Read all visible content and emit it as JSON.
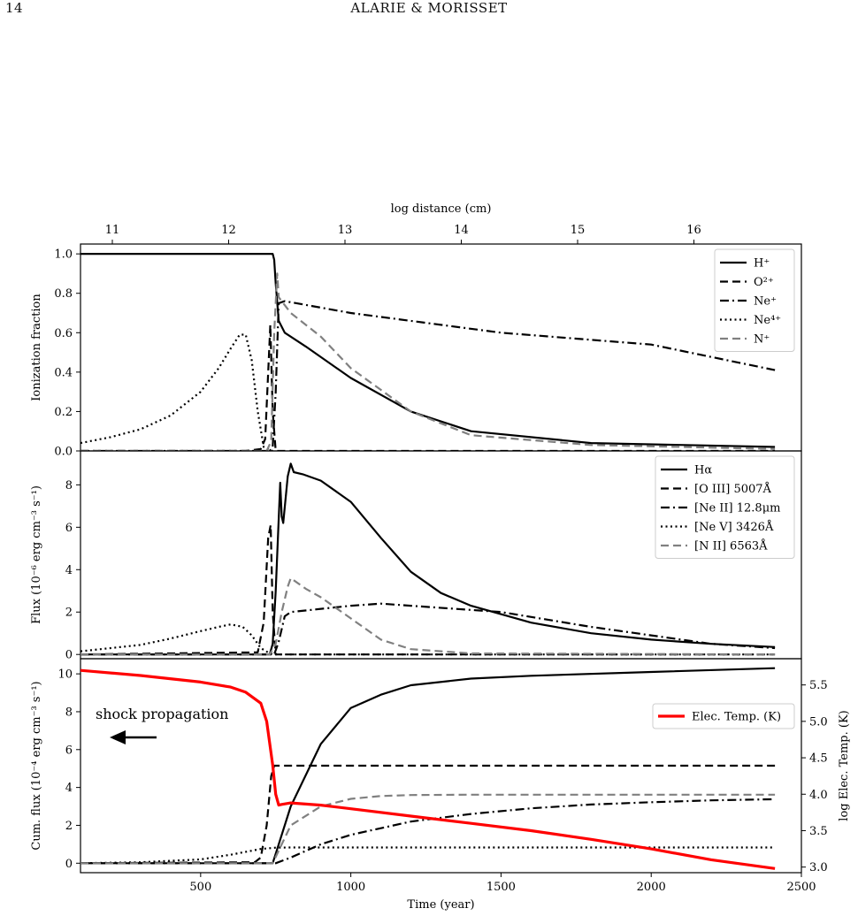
{
  "page": {
    "number": "14",
    "running_head": "ALARIE & MORISSET"
  },
  "chart_data": [
    {
      "type": "line",
      "panel": "top",
      "ylabel": "Ionization fraction",
      "top_xlabel": "log distance (cm)",
      "top_ticks": [
        "11",
        "12",
        "13",
        "14",
        "15",
        "16"
      ],
      "ylim": [
        0,
        1.05
      ],
      "yticks": [
        0.0,
        0.2,
        0.4,
        0.6,
        0.8,
        1.0
      ],
      "xlim": [
        100,
        2500
      ],
      "legend": "top-right",
      "series": [
        {
          "name": "H⁺",
          "style": "solid",
          "color": "#000000",
          "x": [
            100,
            300,
            500,
            700,
            740,
            745,
            750,
            760,
            780,
            850,
            1000,
            1200,
            1400,
            1800,
            2412
          ],
          "y": [
            1.0,
            1.0,
            1.0,
            1.0,
            1.0,
            0.97,
            0.85,
            0.66,
            0.6,
            0.53,
            0.37,
            0.2,
            0.1,
            0.04,
            0.02
          ]
        },
        {
          "name": "O²⁺",
          "style": "dashed",
          "color": "#000000",
          "x": [
            100,
            650,
            700,
            715,
            725,
            732,
            740,
            750,
            800,
            2412
          ],
          "y": [
            0.0,
            0.0,
            0.01,
            0.06,
            0.4,
            0.64,
            0.2,
            0.0,
            0.0,
            0.0
          ]
        },
        {
          "name": "Ne⁺",
          "style": "dashdot",
          "color": "#000000",
          "x": [
            100,
            730,
            740,
            750,
            760,
            780,
            1000,
            1500,
            2000,
            2412
          ],
          "y": [
            0.0,
            0.0,
            0.02,
            0.3,
            0.75,
            0.76,
            0.7,
            0.6,
            0.54,
            0.41
          ]
        },
        {
          "name": "Ne⁴⁺",
          "style": "dotted",
          "color": "#000000",
          "x": [
            100,
            200,
            300,
            400,
            500,
            560,
            600,
            630,
            650,
            670,
            690,
            710,
            740
          ],
          "y": [
            0.04,
            0.07,
            0.11,
            0.18,
            0.3,
            0.42,
            0.52,
            0.59,
            0.59,
            0.46,
            0.2,
            0.02,
            0.0
          ]
        },
        {
          "name": "N⁺",
          "style": "dashed",
          "color": "#808080",
          "x": [
            100,
            720,
            735,
            745,
            755,
            760,
            800,
            900,
            1000,
            1200,
            1400,
            1800,
            2412
          ],
          "y": [
            0.0,
            0.0,
            0.05,
            0.6,
            0.9,
            0.78,
            0.7,
            0.58,
            0.42,
            0.2,
            0.08,
            0.03,
            0.01
          ]
        }
      ]
    },
    {
      "type": "line",
      "panel": "middle",
      "ylabel": "Flux (10⁻⁶ erg cm⁻³ s⁻¹)",
      "ylim": [
        -0.2,
        9.6
      ],
      "yticks": [
        0,
        2,
        4,
        6,
        8
      ],
      "xlim": [
        100,
        2500
      ],
      "legend": "top-right",
      "series": [
        {
          "name": "Hα",
          "style": "solid",
          "color": "#000000",
          "x": [
            100,
            730,
            740,
            750,
            765,
            770,
            775,
            790,
            800,
            810,
            840,
            900,
            1000,
            1100,
            1200,
            1300,
            1400,
            1600,
            1800,
            2000,
            2200,
            2412
          ],
          "y": [
            0.0,
            0.0,
            0.5,
            3.0,
            8.1,
            6.5,
            6.2,
            8.4,
            9.0,
            8.6,
            8.5,
            8.2,
            7.2,
            5.5,
            3.9,
            2.9,
            2.3,
            1.5,
            1.0,
            0.7,
            0.5,
            0.35
          ]
        },
        {
          "name": "[O III] 5007Å",
          "style": "dashed",
          "color": "#000000",
          "x": [
            100,
            690,
            710,
            725,
            733,
            740,
            750,
            2412
          ],
          "y": [
            0.0,
            0.1,
            1.5,
            5.5,
            6.1,
            2.0,
            0.0,
            0.0
          ]
        },
        {
          "name": "[Ne II] 12.8μm",
          "style": "dashdot",
          "color": "#000000",
          "x": [
            100,
            745,
            760,
            780,
            800,
            1000,
            1100,
            1200,
            1500,
            1800,
            2000,
            2200,
            2412
          ],
          "y": [
            0.0,
            0.0,
            0.6,
            1.8,
            2.0,
            2.3,
            2.4,
            2.3,
            2.0,
            1.3,
            0.9,
            0.5,
            0.3
          ]
        },
        {
          "name": "[Ne V] 3426Å",
          "style": "dotted",
          "color": "#000000",
          "x": [
            100,
            200,
            300,
            400,
            500,
            560,
            600,
            640,
            670,
            700,
            730,
            750,
            2412
          ],
          "y": [
            0.15,
            0.3,
            0.45,
            0.75,
            1.1,
            1.3,
            1.42,
            1.3,
            0.9,
            0.3,
            0.05,
            0.0,
            0.0
          ]
        },
        {
          "name": "[N II] 6563Å",
          "style": "dashed",
          "color": "#808080",
          "x": [
            100,
            730,
            750,
            770,
            790,
            800,
            850,
            900,
            1000,
            1100,
            1200,
            1400,
            2412
          ],
          "y": [
            0.0,
            0.0,
            0.5,
            2.0,
            3.2,
            3.6,
            3.1,
            2.7,
            1.7,
            0.7,
            0.25,
            0.05,
            0.0
          ]
        }
      ]
    },
    {
      "type": "line",
      "panel": "bottom",
      "ylabel": "Cum. flux (10⁻⁴ erg cm⁻³ s⁻¹)",
      "ylabel_right": "log Elec. Temp. (K)",
      "xlabel": "Time (year)",
      "xticks": [
        500,
        1000,
        1500,
        2000,
        2500
      ],
      "xlim": [
        100,
        2500
      ],
      "ylim": [
        -0.5,
        10.8
      ],
      "yticks": [
        0,
        2,
        4,
        6,
        8,
        10
      ],
      "ylim_right": [
        2.923,
        5.86
      ],
      "yticks_right": [
        3.0,
        3.5,
        4.0,
        4.5,
        5.0,
        5.5
      ],
      "legend": "center-right",
      "annotation": "shock propagation",
      "series": [
        {
          "style": "solid",
          "color": "#000000",
          "x": [
            100,
            740,
            760,
            800,
            900,
            1000,
            1100,
            1200,
            1400,
            1600,
            2000,
            2412
          ],
          "y": [
            0.0,
            0.0,
            1.0,
            3.0,
            6.3,
            8.2,
            8.9,
            9.4,
            9.75,
            9.9,
            10.1,
            10.3
          ]
        },
        {
          "style": "dashed",
          "color": "#000000",
          "x": [
            100,
            680,
            700,
            720,
            735,
            745,
            750,
            2412
          ],
          "y": [
            0.0,
            0.05,
            0.3,
            2.0,
            4.6,
            5.15,
            5.15,
            5.15
          ]
        },
        {
          "style": "dashdot",
          "color": "#000000",
          "x": [
            100,
            750,
            800,
            900,
            1000,
            1200,
            1400,
            1600,
            1800,
            2000,
            2200,
            2412
          ],
          "y": [
            0.0,
            0.0,
            0.3,
            1.0,
            1.5,
            2.2,
            2.6,
            2.9,
            3.1,
            3.22,
            3.32,
            3.38
          ]
        },
        {
          "style": "dotted",
          "color": "#000000",
          "x": [
            100,
            300,
            500,
            600,
            700,
            750,
            800,
            2412
          ],
          "y": [
            0.0,
            0.05,
            0.2,
            0.45,
            0.75,
            0.82,
            0.83,
            0.83
          ]
        },
        {
          "style": "dashed",
          "color": "#808080",
          "x": [
            100,
            740,
            800,
            900,
            1000,
            1100,
            1200,
            1400,
            2412
          ],
          "y": [
            0.0,
            0.0,
            2.0,
            3.0,
            3.4,
            3.55,
            3.6,
            3.62,
            3.62
          ]
        },
        {
          "name": "Elec. Temp. (K)",
          "style": "solid",
          "color": "#ff0000",
          "axis": "right",
          "x": [
            100,
            300,
            500,
            600,
            650,
            700,
            720,
            740,
            750,
            760,
            770,
            800,
            900,
            1000,
            1200,
            1400,
            1600,
            1800,
            2000,
            2200,
            2412
          ],
          "y": [
            5.7,
            5.63,
            5.54,
            5.47,
            5.4,
            5.25,
            5.0,
            4.4,
            4.0,
            3.85,
            3.86,
            3.88,
            3.85,
            3.8,
            3.7,
            3.6,
            3.5,
            3.38,
            3.25,
            3.1,
            2.98
          ]
        }
      ]
    }
  ]
}
